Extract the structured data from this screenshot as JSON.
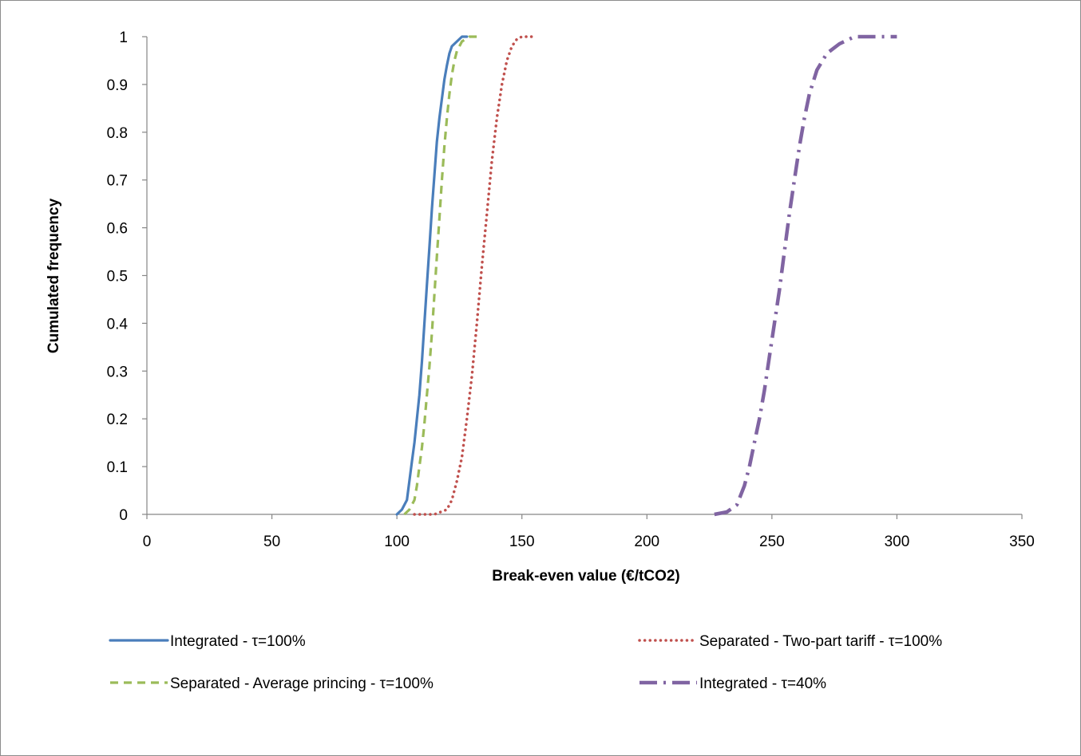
{
  "chart_data": {
    "type": "line",
    "title": "",
    "xlabel": "Break-even value (€/tCO2)",
    "ylabel": "Cumulated frequency",
    "xlim": [
      0,
      350
    ],
    "ylim": [
      0,
      1
    ],
    "x_ticks": [
      "0",
      "50",
      "100",
      "150",
      "200",
      "250",
      "300",
      "350"
    ],
    "y_ticks": [
      "0",
      "0.1",
      "0.2",
      "0.3",
      "0.4",
      "0.5",
      "0.6",
      "0.7",
      "0.8",
      "0.9",
      "1"
    ],
    "grid": false,
    "legend_position": "bottom",
    "series": [
      {
        "name": "Integrated - τ=100%",
        "color": "#4a7ebb",
        "style": "solid",
        "points": [
          [
            100,
            0
          ],
          [
            102,
            0.01
          ],
          [
            104,
            0.03
          ],
          [
            105,
            0.07
          ],
          [
            106,
            0.11
          ],
          [
            107,
            0.15
          ],
          [
            108,
            0.2
          ],
          [
            109,
            0.25
          ],
          [
            110,
            0.32
          ],
          [
            111,
            0.4
          ],
          [
            112,
            0.48
          ],
          [
            113,
            0.56
          ],
          [
            114,
            0.64
          ],
          [
            115,
            0.71
          ],
          [
            116,
            0.78
          ],
          [
            117,
            0.83
          ],
          [
            118,
            0.87
          ],
          [
            119,
            0.91
          ],
          [
            120,
            0.94
          ],
          [
            121,
            0.965
          ],
          [
            122,
            0.98
          ],
          [
            124,
            0.99
          ],
          [
            126,
            1
          ],
          [
            128,
            1
          ]
        ]
      },
      {
        "name": "Separated - Two-part tariff -  τ=100%",
        "color": "#c0504d",
        "style": "dotted",
        "points": [
          [
            107,
            0
          ],
          [
            110,
            0
          ],
          [
            115,
            0
          ],
          [
            120,
            0.01
          ],
          [
            122,
            0.03
          ],
          [
            124,
            0.07
          ],
          [
            126,
            0.12
          ],
          [
            128,
            0.2
          ],
          [
            130,
            0.29
          ],
          [
            132,
            0.4
          ],
          [
            134,
            0.52
          ],
          [
            136,
            0.63
          ],
          [
            138,
            0.74
          ],
          [
            140,
            0.83
          ],
          [
            142,
            0.9
          ],
          [
            144,
            0.95
          ],
          [
            146,
            0.98
          ],
          [
            148,
            0.995
          ],
          [
            150,
            1
          ],
          [
            154,
            1
          ]
        ]
      },
      {
        "name": "Separated - Average princing  - τ=100%",
        "color": "#9bbb59",
        "style": "dashed",
        "points": [
          [
            103,
            0
          ],
          [
            105,
            0.01
          ],
          [
            107,
            0.03
          ],
          [
            108,
            0.06
          ],
          [
            109,
            0.1
          ],
          [
            110,
            0.14
          ],
          [
            111,
            0.19
          ],
          [
            112,
            0.25
          ],
          [
            113,
            0.31
          ],
          [
            114,
            0.38
          ],
          [
            115,
            0.46
          ],
          [
            116,
            0.54
          ],
          [
            117,
            0.62
          ],
          [
            118,
            0.7
          ],
          [
            119,
            0.77
          ],
          [
            120,
            0.83
          ],
          [
            121,
            0.88
          ],
          [
            122,
            0.92
          ],
          [
            123,
            0.95
          ],
          [
            124,
            0.97
          ],
          [
            126,
            0.99
          ],
          [
            129,
            1
          ],
          [
            133,
            1
          ]
        ]
      },
      {
        "name": "Integrated -  τ=40%",
        "color": "#8064a2",
        "style": "dashdot",
        "points": [
          [
            227,
            0
          ],
          [
            232,
            0.005
          ],
          [
            236,
            0.02
          ],
          [
            239,
            0.06
          ],
          [
            241,
            0.1
          ],
          [
            243,
            0.15
          ],
          [
            245,
            0.2
          ],
          [
            247,
            0.26
          ],
          [
            249,
            0.33
          ],
          [
            251,
            0.4
          ],
          [
            253,
            0.47
          ],
          [
            255,
            0.55
          ],
          [
            257,
            0.63
          ],
          [
            259,
            0.7
          ],
          [
            261,
            0.77
          ],
          [
            263,
            0.83
          ],
          [
            265,
            0.88
          ],
          [
            268,
            0.93
          ],
          [
            272,
            0.965
          ],
          [
            277,
            0.985
          ],
          [
            283,
            1
          ],
          [
            290,
            1
          ],
          [
            300,
            1
          ]
        ]
      }
    ]
  }
}
